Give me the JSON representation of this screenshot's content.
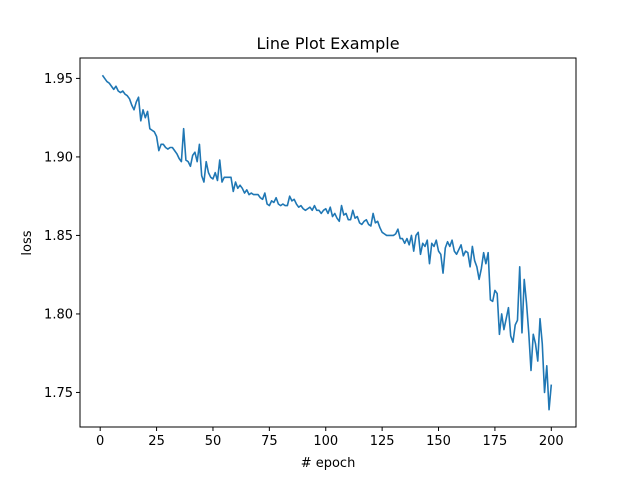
{
  "chart_data": {
    "type": "line",
    "title": "Line Plot Example",
    "xlabel": "# epoch",
    "ylabel": "loss",
    "xlim": [
      -8.95,
      210.95
    ],
    "ylim": [
      1.728,
      1.963
    ],
    "xticks": [
      0,
      25,
      50,
      75,
      100,
      125,
      150,
      175,
      200
    ],
    "xtick_labels": [
      "0",
      "25",
      "50",
      "75",
      "100",
      "125",
      "150",
      "175",
      "200"
    ],
    "yticks": [
      1.75,
      1.8,
      1.85,
      1.9,
      1.95
    ],
    "ytick_labels": [
      "1.75",
      "1.80",
      "1.85",
      "1.90",
      "1.95"
    ],
    "grid": false,
    "line_color": "#1f77b4",
    "series": [
      {
        "x": [
          1,
          2,
          3,
          4,
          5,
          6,
          7,
          8,
          9,
          10,
          11,
          12,
          13,
          14,
          15,
          16,
          17,
          18,
          19,
          20,
          21,
          22,
          23,
          24,
          25,
          26,
          27,
          28,
          29,
          30,
          31,
          32,
          33,
          34,
          35,
          36,
          37,
          38,
          39,
          40,
          41,
          42,
          43,
          44,
          45,
          46,
          47,
          48,
          49,
          50,
          51,
          52,
          53,
          54,
          55,
          56,
          57,
          58,
          59,
          60,
          61,
          62,
          63,
          64,
          65,
          66,
          67,
          68,
          69,
          70,
          71,
          72,
          73,
          74,
          75,
          76,
          77,
          78,
          79,
          80,
          81,
          82,
          83,
          84,
          85,
          86,
          87,
          88,
          89,
          90,
          91,
          92,
          93,
          94,
          95,
          96,
          97,
          98,
          99,
          100,
          101,
          102,
          103,
          104,
          105,
          106,
          107,
          108,
          109,
          110,
          111,
          112,
          113,
          114,
          115,
          116,
          117,
          118,
          119,
          120,
          121,
          122,
          123,
          124,
          125,
          126,
          127,
          128,
          129,
          130,
          131,
          132,
          133,
          134,
          135,
          136,
          137,
          138,
          139,
          140,
          141,
          142,
          143,
          144,
          145,
          146,
          147,
          148,
          149,
          150,
          151,
          152,
          153,
          154,
          155,
          156,
          157,
          158,
          159,
          160,
          161,
          162,
          163,
          164,
          165,
          166,
          167,
          168,
          169,
          170,
          171,
          172,
          173,
          174,
          175,
          176,
          177,
          178,
          179,
          180,
          181,
          182,
          183,
          184,
          185,
          186,
          187,
          188,
          189,
          190,
          191,
          192,
          193,
          194,
          195,
          196,
          197,
          198,
          199,
          200
        ],
        "values": [
          1.952,
          1.95,
          1.948,
          1.947,
          1.945,
          1.943,
          1.945,
          1.942,
          1.941,
          1.942,
          1.94,
          1.939,
          1.937,
          1.933,
          1.93,
          1.935,
          1.938,
          1.923,
          1.93,
          1.925,
          1.929,
          1.918,
          1.917,
          1.916,
          1.913,
          1.904,
          1.908,
          1.908,
          1.906,
          1.905,
          1.906,
          1.906,
          1.904,
          1.902,
          1.899,
          1.897,
          1.918,
          1.898,
          1.897,
          1.894,
          1.901,
          1.903,
          1.897,
          1.908,
          1.888,
          1.884,
          1.897,
          1.89,
          1.887,
          1.886,
          1.89,
          1.885,
          1.898,
          1.884,
          1.887,
          1.887,
          1.887,
          1.887,
          1.878,
          1.884,
          1.88,
          1.882,
          1.88,
          1.877,
          1.879,
          1.876,
          1.877,
          1.876,
          1.876,
          1.876,
          1.874,
          1.873,
          1.877,
          1.87,
          1.869,
          1.872,
          1.871,
          1.874,
          1.87,
          1.869,
          1.87,
          1.869,
          1.869,
          1.875,
          1.872,
          1.873,
          1.87,
          1.868,
          1.869,
          1.867,
          1.866,
          1.867,
          1.868,
          1.866,
          1.869,
          1.866,
          1.866,
          1.864,
          1.866,
          1.867,
          1.864,
          1.868,
          1.862,
          1.864,
          1.861,
          1.859,
          1.869,
          1.863,
          1.864,
          1.86,
          1.86,
          1.866,
          1.861,
          1.862,
          1.858,
          1.857,
          1.859,
          1.86,
          1.857,
          1.856,
          1.864,
          1.858,
          1.859,
          1.855,
          1.852,
          1.851,
          1.85,
          1.85,
          1.85,
          1.85,
          1.851,
          1.854,
          1.848,
          1.848,
          1.845,
          1.848,
          1.844,
          1.85,
          1.84,
          1.85,
          1.852,
          1.838,
          1.845,
          1.843,
          1.847,
          1.832,
          1.845,
          1.843,
          1.847,
          1.84,
          1.838,
          1.826,
          1.842,
          1.846,
          1.843,
          1.847,
          1.84,
          1.838,
          1.841,
          1.844,
          1.837,
          1.84,
          1.839,
          1.83,
          1.843,
          1.834,
          1.83,
          1.822,
          1.829,
          1.839,
          1.832,
          1.839,
          1.809,
          1.808,
          1.815,
          1.813,
          1.787,
          1.8,
          1.79,
          1.797,
          1.804,
          1.786,
          1.782,
          1.793,
          1.796,
          1.83,
          1.788,
          1.822,
          1.807,
          1.788,
          1.764,
          1.787,
          1.781,
          1.77,
          1.797,
          1.781,
          1.75,
          1.767,
          1.739,
          1.755
        ]
      }
    ]
  }
}
